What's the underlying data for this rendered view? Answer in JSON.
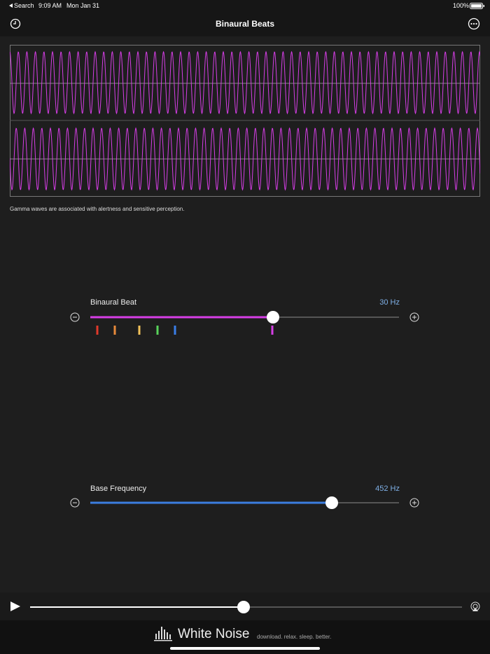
{
  "status_bar": {
    "back": "Search",
    "time": "9:09 AM",
    "date": "Mon Jan 31",
    "battery": "100%"
  },
  "header": {
    "title": "Binaural Beats"
  },
  "description": "Gamma waves are associated with alertness and sensitive perception.",
  "sliders": [
    {
      "label": "Binaural Beat",
      "value": "30 Hz"
    },
    {
      "label": "Base Frequency",
      "value": "452 Hz"
    }
  ],
  "footer": {
    "brand": "White Noise",
    "tagline": "download. relax. sleep. better."
  }
}
